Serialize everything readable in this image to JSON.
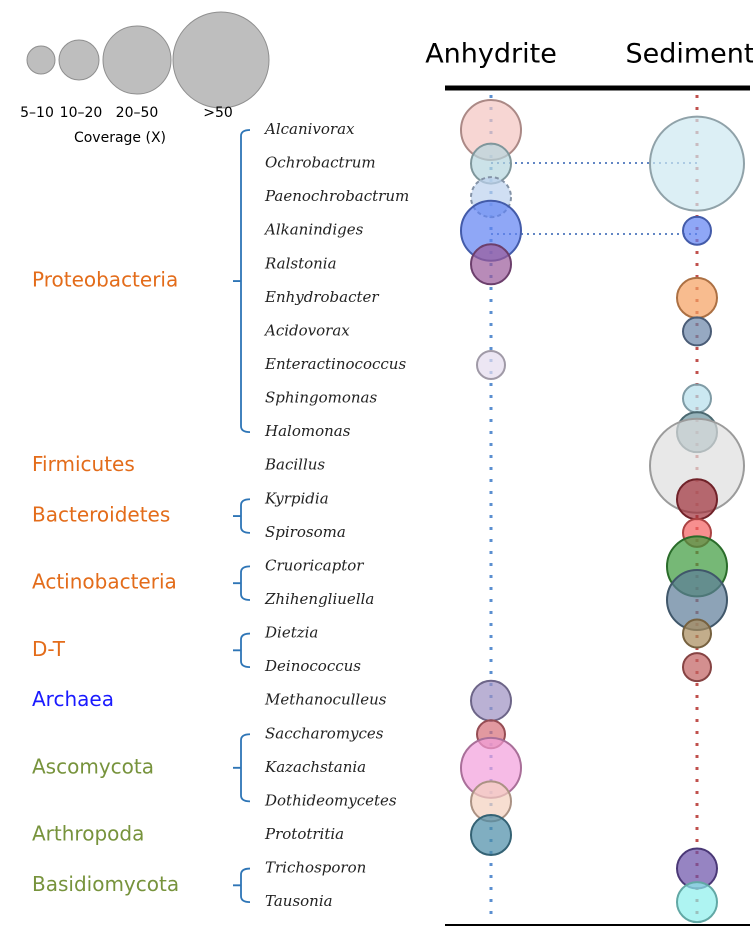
{
  "legend": {
    "sizes": [
      "5–10",
      "10–20",
      "20–50",
      ">50"
    ],
    "title": "Coverage (X)",
    "color": "#b3b3b3"
  },
  "columns": [
    {
      "name": "Anhydrite",
      "line_color": "#5b8fd0"
    },
    {
      "name": "Sediment",
      "line_color": "#c0504d"
    }
  ],
  "phyla": [
    {
      "name": "Proteobacteria",
      "color": "#e36c1a",
      "genera": [
        {
          "name": "Alcanivorax",
          "bubbles": [
            {
              "column": "Anhydrite",
              "size": "20–50",
              "color": "#f4c4c0"
            }
          ]
        },
        {
          "name": "Ochrobactrum",
          "bubbles": [
            {
              "column": "Anhydrite",
              "size": "10–20",
              "color": "#b5d6de"
            },
            {
              "column": "Sediment",
              "size": ">50",
              "color": "#cde8f1"
            }
          ]
        },
        {
          "name": "Paenochrobactrum",
          "bubbles": [
            {
              "column": "Anhydrite",
              "size": "10–20",
              "color": "#bcd2ee",
              "dashed": true
            }
          ]
        },
        {
          "name": "Alkanindiges",
          "bubbles": [
            {
              "column": "Anhydrite",
              "size": "20–50",
              "color": "#5f82f2"
            },
            {
              "column": "Sediment",
              "size": "5–10",
              "color": "#5f82f2"
            }
          ]
        },
        {
          "name": "Ralstonia",
          "bubbles": [
            {
              "column": "Anhydrite",
              "size": "10–20",
              "color": "#9a5a9a"
            }
          ]
        },
        {
          "name": "Enhydrobacter",
          "bubbles": [
            {
              "column": "Sediment",
              "size": "10–20",
              "color": "#f5a060"
            }
          ]
        },
        {
          "name": "Acidovorax",
          "bubbles": [
            {
              "column": "Sediment",
              "size": "5–10",
              "color": "#6a84a8"
            }
          ]
        },
        {
          "name": "Enteractinococcus",
          "bubbles": [
            {
              "column": "Anhydrite",
              "size": "5–10",
              "color": "#e4dcee"
            }
          ]
        },
        {
          "name": "Sphingomonas",
          "bubbles": [
            {
              "column": "Sediment",
              "size": "5–10",
              "color": "#b5deeb"
            }
          ]
        },
        {
          "name": "Halomonas",
          "bubbles": [
            {
              "column": "Sediment",
              "size": "10–20",
              "color": "#6b94a0"
            }
          ]
        }
      ]
    },
    {
      "name": "Firmicutes",
      "color": "#e36c1a",
      "genera": [
        {
          "name": "Bacillus",
          "bubbles": [
            {
              "column": "Sediment",
              "size": ">50",
              "color": "#dedede"
            }
          ]
        }
      ]
    },
    {
      "name": "Bacteroidetes",
      "color": "#e36c1a",
      "genera": [
        {
          "name": "Kyrpidia",
          "bubbles": [
            {
              "column": "Sediment",
              "size": "10–20",
              "color": "#a0303a"
            }
          ]
        },
        {
          "name": "Spirosoma",
          "bubbles": [
            {
              "column": "Sediment",
              "size": "5–10",
              "color": "#f46060"
            }
          ]
        }
      ]
    },
    {
      "name": "Actinobacteria",
      "color": "#e36c1a",
      "genera": [
        {
          "name": "Cruoricaptor",
          "bubbles": [
            {
              "column": "Sediment",
              "size": "20–50",
              "color": "#3c9a3c"
            }
          ]
        },
        {
          "name": "Zhihengliuella",
          "bubbles": [
            {
              "column": "Sediment",
              "size": "20–50",
              "color": "#5c7c98"
            }
          ]
        }
      ]
    },
    {
      "name": "D-T",
      "color": "#e36c1a",
      "genera": [
        {
          "name": "Dietzia",
          "bubbles": [
            {
              "column": "Sediment",
              "size": "5–10",
              "color": "#a88a5a"
            }
          ]
        },
        {
          "name": "Deinococcus",
          "bubbles": [
            {
              "column": "Sediment",
              "size": "5–10",
              "color": "#c06060"
            }
          ]
        }
      ]
    },
    {
      "name": "Archaea",
      "color": "#1a1aff",
      "genera": [
        {
          "name": "Methanoculleus",
          "bubbles": [
            {
              "column": "Anhydrite",
              "size": "10–20",
              "color": "#9c90c2"
            }
          ]
        }
      ]
    },
    {
      "name": "Ascomycota",
      "color": "#77933c",
      "genera": [
        {
          "name": "Saccharomyces",
          "bubbles": [
            {
              "column": "Anhydrite",
              "size": "5–10",
              "color": "#d66e78"
            }
          ]
        },
        {
          "name": "Kazachstania",
          "bubbles": [
            {
              "column": "Anhydrite",
              "size": "20–50",
              "color": "#f29edb"
            }
          ]
        },
        {
          "name": "Dothideomycetes",
          "bubbles": [
            {
              "column": "Anhydrite",
              "size": "10–20",
              "color": "#f4d0bd"
            }
          ]
        }
      ]
    },
    {
      "name": "Arthropoda",
      "color": "#77933c",
      "genera": [
        {
          "name": "Prototritia",
          "bubbles": [
            {
              "column": "Anhydrite",
              "size": "10–20",
              "color": "#4a8ca6"
            }
          ]
        }
      ]
    },
    {
      "name": "Basidiomycota",
      "color": "#77933c",
      "genera": [
        {
          "name": "Trichosporon",
          "bubbles": [
            {
              "column": "Sediment",
              "size": "10–20",
              "color": "#6a50a8"
            }
          ]
        },
        {
          "name": "Tausonia",
          "bubbles": [
            {
              "column": "Sediment",
              "size": "10–20",
              "color": "#8cf0ec"
            }
          ]
        }
      ]
    }
  ]
}
